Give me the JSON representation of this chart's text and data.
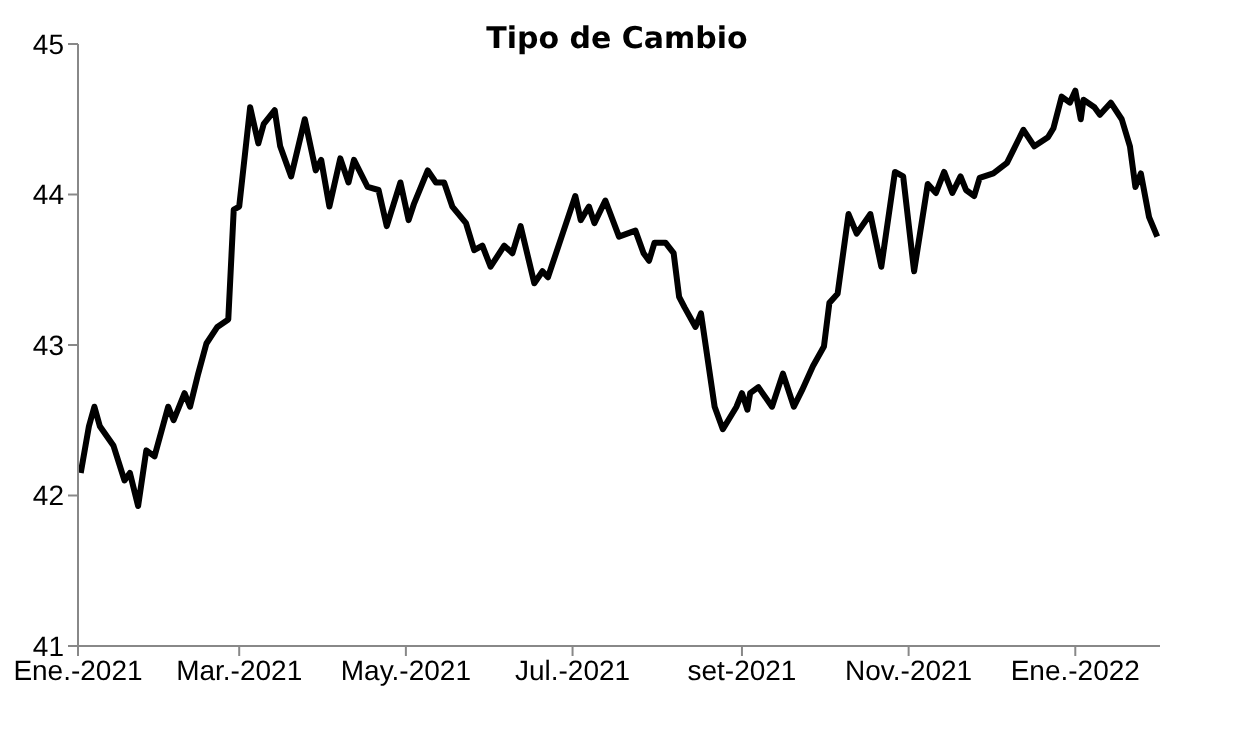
{
  "chart_data": {
    "type": "line",
    "title": "Tipo de Cambio",
    "x": [
      "2021-01-02",
      "2021-01-05",
      "2021-01-07",
      "2021-01-09",
      "2021-01-14",
      "2021-01-18",
      "2021-01-20",
      "2021-01-23",
      "2021-01-26",
      "2021-01-29",
      "2021-02-03",
      "2021-02-05",
      "2021-02-09",
      "2021-02-11",
      "2021-02-14",
      "2021-02-17",
      "2021-02-21",
      "2021-02-25",
      "2021-02-27",
      "2021-03-01",
      "2021-03-05",
      "2021-03-08",
      "2021-03-10",
      "2021-03-14",
      "2021-03-16",
      "2021-03-20",
      "2021-03-25",
      "2021-03-29",
      "2021-03-31",
      "2021-04-03",
      "2021-04-07",
      "2021-04-10",
      "2021-04-12",
      "2021-04-17",
      "2021-04-21",
      "2021-04-24",
      "2021-04-29",
      "2021-05-02",
      "2021-05-04",
      "2021-05-09",
      "2021-05-12",
      "2021-05-15",
      "2021-05-18",
      "2021-05-23",
      "2021-05-26",
      "2021-05-29",
      "2021-06-01",
      "2021-06-06",
      "2021-06-09",
      "2021-06-12",
      "2021-06-17",
      "2021-06-20",
      "2021-06-22",
      "2021-06-27",
      "2021-07-02",
      "2021-07-04",
      "2021-07-07",
      "2021-07-09",
      "2021-07-13",
      "2021-07-18",
      "2021-07-24",
      "2021-07-27",
      "2021-07-29",
      "2021-07-31",
      "2021-08-04",
      "2021-08-07",
      "2021-08-09",
      "2021-08-11",
      "2021-08-15",
      "2021-08-17",
      "2021-08-22",
      "2021-08-25",
      "2021-08-30",
      "2021-09-01",
      "2021-09-03",
      "2021-09-04",
      "2021-09-07",
      "2021-09-12",
      "2021-09-16",
      "2021-09-20",
      "2021-09-23",
      "2021-09-27",
      "2021-10-01",
      "2021-10-03",
      "2021-10-06",
      "2021-10-10",
      "2021-10-13",
      "2021-10-18",
      "2021-10-22",
      "2021-10-27",
      "2021-10-30",
      "2021-11-03",
      "2021-11-08",
      "2021-11-11",
      "2021-11-14",
      "2021-11-17",
      "2021-11-20",
      "2021-11-22",
      "2021-11-25",
      "2021-11-27",
      "2021-12-02",
      "2021-12-07",
      "2021-12-13",
      "2021-12-17",
      "2021-12-22",
      "2021-12-24",
      "2021-12-27",
      "2021-12-30",
      "2022-01-01",
      "2022-01-03",
      "2022-01-04",
      "2022-01-08",
      "2022-01-10",
      "2022-01-14",
      "2022-01-18",
      "2022-01-21",
      "2022-01-23",
      "2022-01-25",
      "2022-01-28",
      "2022-01-31"
    ],
    "series": [
      {
        "color": "#000000",
        "values": [
          42.15,
          42.46,
          42.59,
          42.46,
          42.33,
          42.1,
          42.15,
          41.93,
          42.3,
          42.26,
          42.59,
          42.5,
          42.68,
          42.59,
          42.81,
          43.01,
          43.12,
          43.17,
          43.9,
          43.92,
          44.58,
          44.34,
          44.47,
          44.56,
          44.32,
          44.12,
          44.5,
          44.16,
          44.23,
          43.92,
          44.24,
          44.08,
          44.23,
          44.05,
          44.03,
          43.79,
          44.08,
          43.83,
          43.94,
          44.16,
          44.08,
          44.08,
          43.92,
          43.81,
          43.63,
          43.66,
          43.52,
          43.66,
          43.61,
          43.79,
          43.41,
          43.49,
          43.45,
          43.72,
          43.99,
          43.83,
          43.92,
          43.81,
          43.96,
          43.72,
          43.76,
          43.61,
          43.56,
          43.68,
          43.68,
          43.61,
          43.32,
          43.25,
          43.12,
          43.21,
          42.59,
          42.44,
          42.59,
          42.68,
          42.57,
          42.68,
          42.72,
          42.59,
          42.81,
          42.59,
          42.7,
          42.86,
          42.99,
          43.28,
          43.34,
          43.87,
          43.74,
          43.87,
          43.52,
          44.15,
          44.12,
          43.49,
          44.07,
          44.01,
          44.15,
          44.01,
          44.12,
          44.03,
          43.99,
          44.11,
          44.14,
          44.21,
          44.43,
          44.32,
          44.38,
          44.44,
          44.65,
          44.61,
          44.69,
          44.5,
          44.63,
          44.58,
          44.53,
          44.61,
          44.5,
          44.32,
          44.05,
          44.14,
          43.85,
          43.72
        ]
      }
    ],
    "xlim": [
      "2021-01-01",
      "2022-02-01"
    ],
    "xticks": [
      {
        "value": "2021-01-01",
        "label": "Ene.-2021"
      },
      {
        "value": "2021-03-01",
        "label": "Mar.-2021"
      },
      {
        "value": "2021-05-01",
        "label": "May.-2021"
      },
      {
        "value": "2021-07-01",
        "label": "Jul.-2021"
      },
      {
        "value": "2021-09-01",
        "label": "set-2021"
      },
      {
        "value": "2021-11-01",
        "label": "Nov.-2021"
      },
      {
        "value": "2022-01-01",
        "label": "Ene.-2022"
      }
    ],
    "ylim": [
      41,
      45
    ],
    "yticks": [
      41,
      42,
      43,
      44,
      45
    ],
    "grid": false,
    "legend": false,
    "marker": "none",
    "line_style": "solid"
  }
}
